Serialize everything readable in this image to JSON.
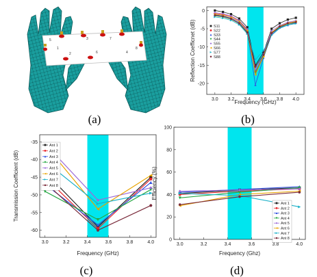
{
  "captions": [
    "(a)",
    "(b)",
    "(c)",
    "(d)"
  ],
  "panel_a": {
    "port_labels": [
      "1",
      "2",
      "3",
      "4",
      "5",
      "6",
      "7",
      "8"
    ],
    "colors": {
      "hands": "#1a9e9e",
      "hands_edge": "#0b5a5a",
      "board": "#ffffff",
      "ports": "#cc1111",
      "connectors": "#c8a020"
    }
  },
  "highlight_color": "#00e5ee",
  "chart_data": [
    {
      "id": "b",
      "type": "line",
      "title": "",
      "xlabel": "Frequency (GHz)",
      "ylabel": "Reflection Coefficnet (dB)",
      "xlim": [
        2.9,
        4.1
      ],
      "ylim": [
        -23,
        1
      ],
      "xticks": [
        3.0,
        3.2,
        3.4,
        3.6,
        3.8,
        4.0
      ],
      "yticks": [
        0,
        -5,
        -10,
        -15,
        -20
      ],
      "highlight": [
        3.4,
        3.6
      ],
      "legend_position": "left",
      "x": [
        3.0,
        3.1,
        3.2,
        3.3,
        3.4,
        3.5,
        3.6,
        3.7,
        3.8,
        3.9,
        4.0
      ],
      "series": [
        {
          "name": "S11",
          "color": "#222222",
          "marker": "square",
          "values": [
            0.0,
            -0.4,
            -1.0,
            -2.2,
            -4.6,
            -15.0,
            -11.5,
            -5.0,
            -3.5,
            -2.5,
            -2.0
          ]
        },
        {
          "name": "S22",
          "color": "#e8262b",
          "marker": "circle",
          "values": [
            -0.8,
            -1.1,
            -1.6,
            -2.8,
            -5.3,
            -16.8,
            -12.5,
            -6.0,
            -4.5,
            -3.6,
            -3.1
          ]
        },
        {
          "name": "S33",
          "color": "#3050e0",
          "marker": "triangle",
          "values": [
            -1.2,
            -1.5,
            -2.1,
            -3.3,
            -5.8,
            -20.4,
            -13.0,
            -6.6,
            -4.7,
            -4.0,
            -3.4
          ]
        },
        {
          "name": "S44",
          "color": "#27a844",
          "marker": "triangle-down",
          "values": [
            -1.5,
            -1.8,
            -2.4,
            -3.6,
            -6.2,
            -17.2,
            -12.8,
            -6.3,
            -4.6,
            -3.8,
            -3.3
          ]
        },
        {
          "name": "S55",
          "color": "#9b6ad8",
          "marker": "diamond",
          "values": [
            -0.6,
            -0.9,
            -1.5,
            -2.7,
            -5.1,
            -16.0,
            -12.0,
            -5.6,
            -4.1,
            -3.2,
            -2.8
          ]
        },
        {
          "name": "S66",
          "color": "#e8a400",
          "marker": "triangle-left",
          "values": [
            -1.0,
            -1.3,
            -1.9,
            -3.0,
            -5.5,
            -17.6,
            -12.6,
            -6.0,
            -4.3,
            -3.4,
            -3.0
          ]
        },
        {
          "name": "S77",
          "color": "#1ab0c8",
          "marker": "triangle-right",
          "values": [
            -1.8,
            -2.1,
            -2.7,
            -3.9,
            -6.4,
            -13.5,
            -11.0,
            -6.8,
            -4.9,
            -4.0,
            -3.6
          ]
        },
        {
          "name": "S88",
          "color": "#7a2a3a",
          "marker": "hexagon",
          "values": [
            -1.3,
            -1.6,
            -2.3,
            -3.5,
            -6.0,
            -15.4,
            -12.2,
            -6.2,
            -4.4,
            -3.5,
            -3.2
          ]
        }
      ]
    },
    {
      "id": "c",
      "type": "line",
      "title": "",
      "xlabel": "Frequency (GHz)",
      "ylabel": "Transmission Coefficient (dB)",
      "xlim": [
        2.95,
        4.05
      ],
      "ylim": [
        -62,
        -33
      ],
      "xticks": [
        3.0,
        3.2,
        3.4,
        3.6,
        3.8,
        4.0
      ],
      "yticks": [
        -35,
        -40,
        -45,
        -50,
        -55,
        -60
      ],
      "highlight": [
        3.4,
        3.6
      ],
      "legend_position": "top-left",
      "x": [
        3.0,
        3.5,
        4.0
      ],
      "series": [
        {
          "name": "Ant 1",
          "color": "#222222",
          "marker": "square",
          "values": [
            -43.5,
            -59.0,
            -45.0
          ]
        },
        {
          "name": "Ant 2",
          "color": "#e8262b",
          "marker": "circle",
          "values": [
            -45.0,
            -59.5,
            -45.5
          ]
        },
        {
          "name": "Ant 3",
          "color": "#3050e0",
          "marker": "triangle",
          "values": [
            -47.0,
            -58.5,
            -46.5
          ]
        },
        {
          "name": "Ant 4",
          "color": "#27a844",
          "marker": "triangle-down",
          "values": [
            -49.0,
            -57.0,
            -48.5
          ]
        },
        {
          "name": "Ant 5",
          "color": "#9b6ad8",
          "marker": "diamond",
          "values": [
            -35.5,
            -51.5,
            -48.0
          ]
        },
        {
          "name": "Ant 6",
          "color": "#e8a400",
          "marker": "triangle-left",
          "values": [
            -35.8,
            -54.0,
            -44.5
          ]
        },
        {
          "name": "Ant 7",
          "color": "#1ab0c8",
          "marker": "triangle-right",
          "values": [
            -40.5,
            -52.5,
            -49.5
          ]
        },
        {
          "name": "Ant 8",
          "color": "#7a2a3a",
          "marker": "hexagon",
          "values": [
            -46.5,
            -60.0,
            -53.0
          ]
        }
      ]
    },
    {
      "id": "d",
      "type": "line",
      "title": "",
      "xlabel": "Frequency (Ghz)",
      "ylabel": "Efficiency (%)",
      "xlim": [
        2.95,
        4.05
      ],
      "ylim": [
        0,
        100
      ],
      "xticks": [
        3.0,
        3.2,
        3.4,
        3.6,
        3.8,
        4.0
      ],
      "yticks": [
        0,
        20,
        40,
        60,
        80,
        100
      ],
      "highlight": [
        3.4,
        3.6
      ],
      "legend_position": "right",
      "x": [
        3.0,
        3.5,
        4.0
      ],
      "series": [
        {
          "name": "Ant 1",
          "color": "#222222",
          "marker": "square",
          "values": [
            41.0,
            44.0,
            46.0
          ]
        },
        {
          "name": "Ant 2",
          "color": "#e8262b",
          "marker": "circle",
          "values": [
            40.0,
            43.0,
            45.0
          ]
        },
        {
          "name": "Ant 3",
          "color": "#3050e0",
          "marker": "triangle",
          "values": [
            42.0,
            44.5,
            47.0
          ]
        },
        {
          "name": "Ant 4",
          "color": "#27a844",
          "marker": "triangle-down",
          "values": [
            37.0,
            42.0,
            46.0
          ]
        },
        {
          "name": "Ant 5",
          "color": "#9b6ad8",
          "marker": "diamond",
          "values": [
            43.0,
            44.0,
            45.0
          ]
        },
        {
          "name": "Ant 6",
          "color": "#e8a400",
          "marker": "triangle-left",
          "values": [
            30.0,
            40.0,
            43.0
          ]
        },
        {
          "name": "Ant 7",
          "color": "#1ab0c8",
          "marker": "triangle-right",
          "values": [
            41.0,
            39.0,
            29.0
          ]
        },
        {
          "name": "Ant 8",
          "color": "#7a2a3a",
          "marker": "hexagon",
          "values": [
            31.0,
            38.0,
            42.0
          ]
        }
      ]
    }
  ]
}
